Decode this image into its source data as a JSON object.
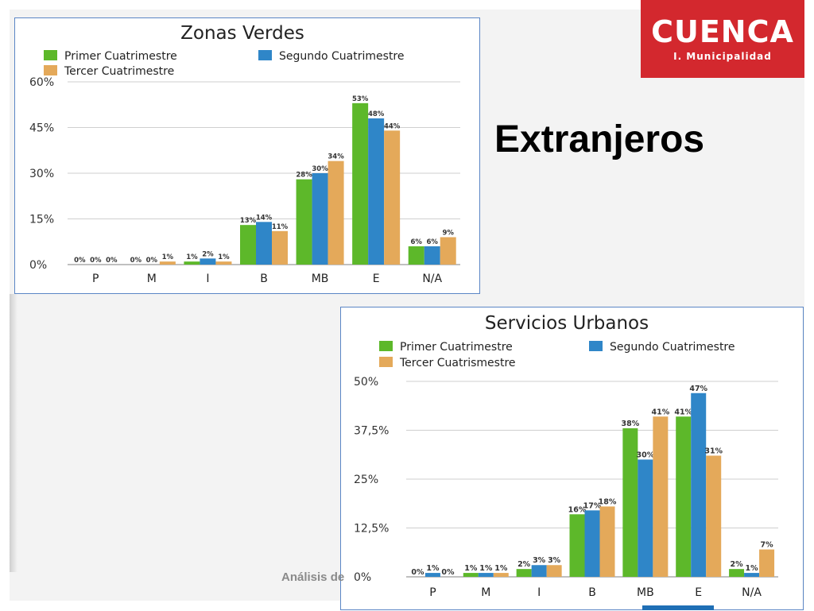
{
  "page": {
    "heading": "Extranjeros",
    "footer_text": "Análisis de",
    "logo": {
      "word": "CUENCA",
      "sub": "I. Municipalidad"
    },
    "colors": {
      "green": "#5db82a",
      "blue": "#2f86c8",
      "orange": "#e4a95a",
      "logo_red": "#d3282e"
    }
  },
  "chart_data": [
    {
      "type": "bar",
      "title": "Zonas Verdes",
      "categories": [
        "P",
        "M",
        "I",
        "B",
        "MB",
        "E",
        "N/A"
      ],
      "ylim": [
        0,
        60
      ],
      "yticks": [
        0,
        15,
        30,
        45,
        60
      ],
      "ytick_labels": [
        "0%",
        "15%",
        "30%",
        "45%",
        "60%"
      ],
      "grid": true,
      "legend": "top",
      "series": [
        {
          "name": "Primer Cuatrimestre",
          "color": "#5db82a",
          "values": [
            0,
            0,
            1,
            13,
            28,
            53,
            6
          ],
          "labels": [
            "0%",
            "0%",
            "1%",
            "13%",
            "28%",
            "53%",
            "6%"
          ]
        },
        {
          "name": "Segundo Cuatrimestre",
          "color": "#2f86c8",
          "values": [
            0,
            0,
            2,
            14,
            30,
            48,
            6
          ],
          "labels": [
            "0%",
            "0%",
            "2%",
            "14%",
            "30%",
            "48%",
            "6%"
          ]
        },
        {
          "name": "Tercer Cuatrimestre",
          "color": "#e4a95a",
          "values": [
            0,
            1,
            1,
            11,
            34,
            44,
            9
          ],
          "labels": [
            "0%",
            "1%",
            "1%",
            "11%",
            "34%",
            "44%",
            "9%"
          ]
        }
      ]
    },
    {
      "type": "bar",
      "title": "Servicios Urbanos",
      "categories": [
        "P",
        "M",
        "I",
        "B",
        "MB",
        "E",
        "N/A"
      ],
      "ylim": [
        0,
        50
      ],
      "yticks": [
        0,
        12.5,
        25,
        37.5,
        50
      ],
      "ytick_labels": [
        "0%",
        "12,5%",
        "25%",
        "37,5%",
        "50%"
      ],
      "grid": true,
      "legend": "top",
      "series": [
        {
          "name": "Primer Cuatrimestre",
          "color": "#5db82a",
          "values": [
            0,
            1,
            2,
            16,
            38,
            41,
            2
          ],
          "labels": [
            "0%",
            "1%",
            "2%",
            "16%",
            "38%",
            "41%",
            "2%"
          ]
        },
        {
          "name": "Segundo Cuatrimestre",
          "color": "#2f86c8",
          "values": [
            1,
            1,
            3,
            17,
            30,
            47,
            1
          ],
          "labels": [
            "1%",
            "1%",
            "3%",
            "17%",
            "30%",
            "47%",
            "1%"
          ]
        },
        {
          "name": "Tercer Cuatrismestre",
          "color": "#e4a95a",
          "values": [
            0,
            1,
            3,
            18,
            41,
            31,
            7
          ],
          "labels": [
            "0%",
            "1%",
            "3%",
            "18%",
            "41%",
            "31%",
            "7%"
          ]
        }
      ]
    }
  ]
}
